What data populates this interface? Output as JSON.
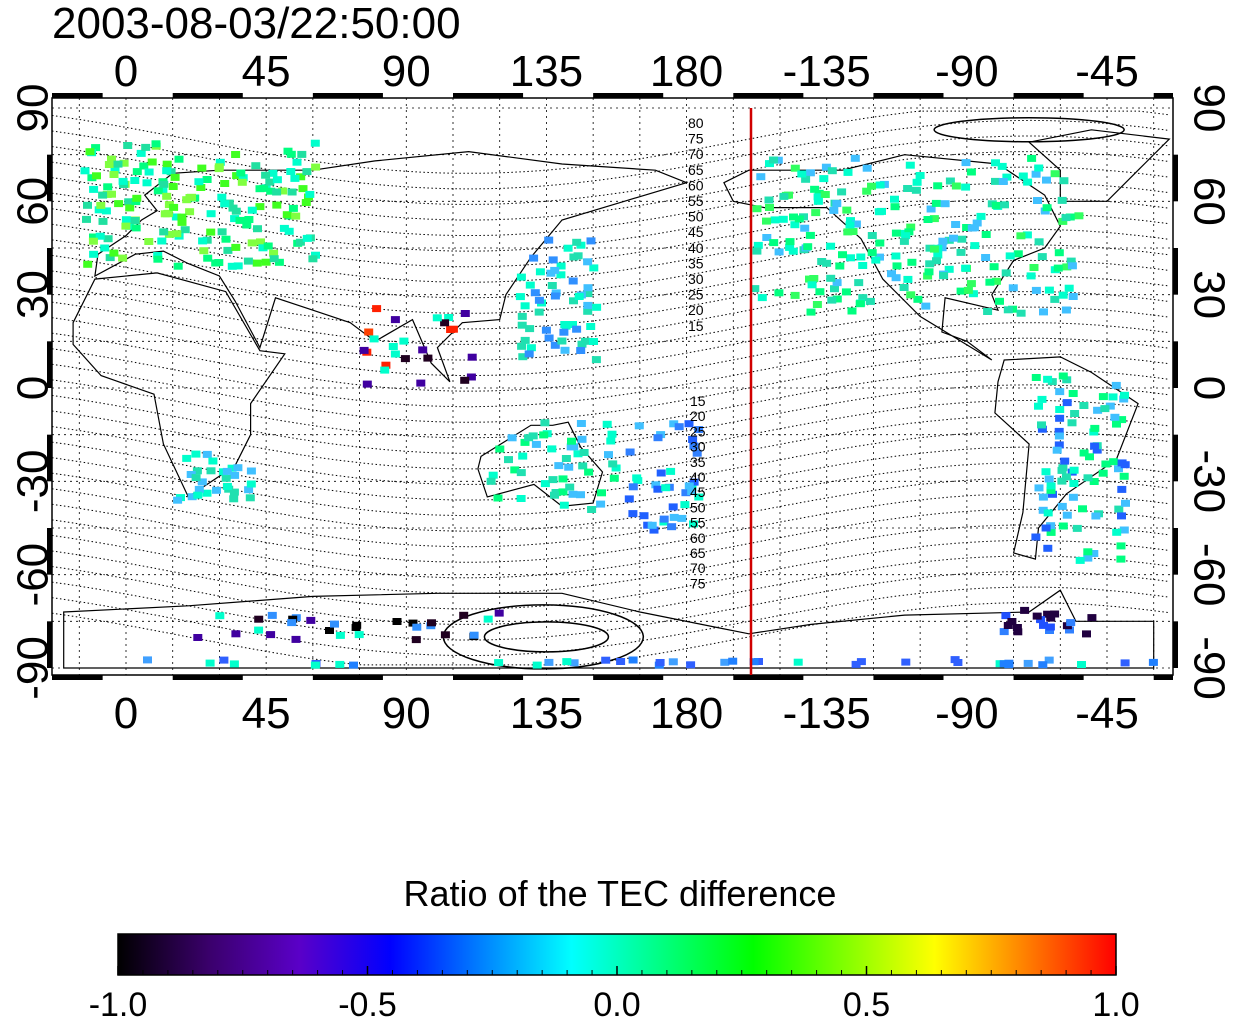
{
  "title": "2003-08-03/22:50:00",
  "map": {
    "lon_ticks_top": [
      "0",
      "45",
      "90",
      "135",
      "180",
      "-135",
      "-90",
      "-45"
    ],
    "lon_ticks_bottom": [
      "0",
      "45",
      "90",
      "135",
      "180",
      "-135",
      "-90",
      "-45"
    ],
    "lat_ticks_left": [
      "90",
      "60",
      "30",
      "0",
      "-30",
      "-60",
      "-90"
    ],
    "lat_ticks_right": [
      "90",
      "60",
      "30",
      "0",
      "-30",
      "-60",
      "-90"
    ],
    "contour_labels_north": [
      "80",
      "75",
      "70",
      "65",
      "60",
      "55",
      "50",
      "45",
      "40",
      "35",
      "30",
      "25",
      "20",
      "15"
    ],
    "contour_labels_south": [
      "15",
      "20",
      "25",
      "30",
      "35",
      "40",
      "45",
      "50",
      "55",
      "60",
      "65",
      "70",
      "75"
    ],
    "reference_meridian_color": "#d00000",
    "lon_range": [
      -20,
      330
    ],
    "lat_range": [
      -90,
      90
    ]
  },
  "colorbar": {
    "title": "Ratio of the TEC difference",
    "tick_labels": [
      "-1.0",
      "-0.5",
      "0.0",
      "0.5",
      "1.0"
    ],
    "range": [
      -1.0,
      1.0
    ],
    "colors": [
      "#000000",
      "#3a006b",
      "#5a00c8",
      "#0000ff",
      "#0080ff",
      "#00ffff",
      "#00ff80",
      "#00ff00",
      "#80ff00",
      "#ffff00",
      "#ff8000",
      "#ff0000"
    ]
  }
}
